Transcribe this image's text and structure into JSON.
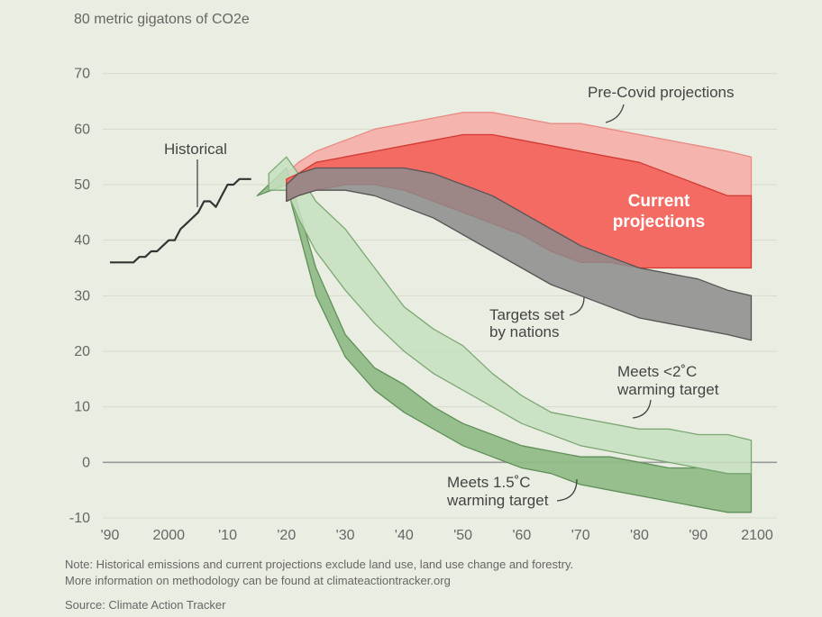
{
  "chart_data": {
    "type": "area",
    "ylabel": "80 metric gigatons of CO2e",
    "ylim": [
      -10,
      80
    ],
    "xlim": [
      1990,
      2100
    ],
    "y_ticks": [
      {
        "value": 70,
        "label": "70"
      },
      {
        "value": 60,
        "label": "60"
      },
      {
        "value": 50,
        "label": "50"
      },
      {
        "value": 40,
        "label": "40"
      },
      {
        "value": 30,
        "label": "30"
      },
      {
        "value": 20,
        "label": "20"
      },
      {
        "value": 10,
        "label": "10"
      },
      {
        "value": 0,
        "label": "0"
      },
      {
        "value": -10,
        "label": "-10"
      }
    ],
    "x_ticks": [
      {
        "value": 1990,
        "label": "'90"
      },
      {
        "value": 2000,
        "label": "2000"
      },
      {
        "value": 2010,
        "label": "'10"
      },
      {
        "value": 2020,
        "label": "'20"
      },
      {
        "value": 2030,
        "label": "'30"
      },
      {
        "value": 2040,
        "label": "'40"
      },
      {
        "value": 2050,
        "label": "'50"
      },
      {
        "value": 2060,
        "label": "'60"
      },
      {
        "value": 2070,
        "label": "'70"
      },
      {
        "value": 2080,
        "label": "'80"
      },
      {
        "value": 2090,
        "label": "'90"
      },
      {
        "value": 2100,
        "label": "2100"
      }
    ],
    "grid": true,
    "colors": {
      "historical": "#333333",
      "pre_covid": "#f5b4ae",
      "current": "#f36b63",
      "targets": "#8c8c8c",
      "two_degree": "#c7dfc0",
      "one_five": "#8fbb86",
      "zero_line": "#999999"
    },
    "series": [
      {
        "name": "Historical",
        "kind": "line",
        "x": [
          1990,
          1994,
          1995,
          1996,
          1997,
          1998,
          1999,
          2000,
          2001,
          2002,
          2003,
          2004,
          2005,
          2006,
          2007,
          2008,
          2009,
          2010,
          2011,
          2012,
          2013,
          2014
        ],
        "y": [
          36,
          36,
          37,
          37,
          38,
          38,
          39,
          40,
          40,
          42,
          43,
          44,
          45,
          47,
          47,
          46,
          48,
          50,
          50,
          51,
          51,
          51
        ]
      },
      {
        "name": "Pre-Covid projections",
        "kind": "band",
        "x": [
          2019,
          2022,
          2025,
          2030,
          2035,
          2040,
          2045,
          2050,
          2055,
          2060,
          2065,
          2070,
          2075,
          2080,
          2085,
          2090,
          2095,
          2099
        ],
        "upper": [
          51,
          54,
          56,
          58,
          60,
          61,
          62,
          63,
          63,
          62,
          61,
          61,
          60,
          59,
          58,
          57,
          56,
          55
        ],
        "lower": [
          50,
          51,
          52,
          53,
          53,
          52,
          51,
          50,
          48,
          46,
          44,
          42,
          41,
          40,
          39,
          39,
          38,
          38
        ]
      },
      {
        "name": "Current projections",
        "kind": "band",
        "x": [
          2020,
          2022,
          2025,
          2030,
          2035,
          2040,
          2045,
          2050,
          2055,
          2060,
          2065,
          2070,
          2075,
          2080,
          2085,
          2090,
          2095,
          2099
        ],
        "upper": [
          51,
          52,
          54,
          55,
          56,
          57,
          58,
          59,
          59,
          58,
          57,
          56,
          55,
          54,
          52,
          50,
          48,
          48
        ],
        "lower": [
          47,
          48,
          49,
          50,
          50,
          49,
          47,
          45,
          43,
          41,
          38,
          36,
          36,
          35,
          35,
          35,
          35,
          35
        ]
      },
      {
        "name": "Targets set by nations",
        "kind": "band",
        "x": [
          2020,
          2022,
          2025,
          2030,
          2035,
          2040,
          2045,
          2050,
          2055,
          2060,
          2065,
          2070,
          2075,
          2080,
          2085,
          2090,
          2095,
          2099
        ],
        "upper": [
          50,
          52,
          53,
          53,
          53,
          53,
          52,
          50,
          48,
          45,
          42,
          39,
          37,
          35,
          34,
          33,
          31,
          30
        ],
        "lower": [
          47,
          48,
          49,
          49,
          48,
          46,
          44,
          41,
          38,
          35,
          32,
          30,
          28,
          26,
          25,
          24,
          23,
          22
        ]
      },
      {
        "name": "Meets <2°C warming target",
        "kind": "band",
        "x": [
          2017,
          2020,
          2022,
          2025,
          2030,
          2035,
          2040,
          2045,
          2050,
          2055,
          2060,
          2065,
          2070,
          2075,
          2080,
          2085,
          2090,
          2095,
          2099
        ],
        "upper": [
          52,
          55,
          52,
          47,
          42,
          35,
          28,
          24,
          21,
          16,
          12,
          9,
          8,
          7,
          6,
          6,
          5,
          5,
          4
        ],
        "lower": [
          49,
          49,
          44,
          38,
          31,
          25,
          20,
          16,
          13,
          10,
          7,
          5,
          3,
          2,
          1,
          0,
          -1,
          -2,
          -2
        ]
      },
      {
        "name": "Meets 1.5°C warming target",
        "kind": "band",
        "x": [
          2015,
          2020,
          2022,
          2025,
          2030,
          2035,
          2040,
          2045,
          2050,
          2055,
          2060,
          2065,
          2070,
          2075,
          2080,
          2085,
          2090,
          2095,
          2099
        ],
        "upper": [
          48,
          53,
          46,
          35,
          23,
          17,
          14,
          10,
          7,
          5,
          3,
          2,
          1,
          1,
          0,
          -1,
          -1,
          -2,
          -2
        ],
        "lower": [
          48,
          50,
          42,
          30,
          19,
          13,
          9,
          6,
          3,
          1,
          -1,
          -2,
          -4,
          -5,
          -6,
          -7,
          -8,
          -9,
          -9
        ]
      }
    ],
    "labels": {
      "historical": "Historical",
      "pre_covid": "Pre-Covid projections",
      "current_1": "Current",
      "current_2": "projections",
      "targets_1": "Targets set",
      "targets_2": "by nations",
      "two_1": "Meets <2˚C",
      "two_2": "warming target",
      "one5_1": "Meets 1.5˚C",
      "one5_2": "warming target"
    }
  },
  "footer": {
    "note_1": "Note: Historical emissions and current projections exclude land use, land use change and forestry.",
    "note_2": "More information on methodology can be found at climateactiontracker.org",
    "source": "Source: Climate Action Tracker"
  }
}
